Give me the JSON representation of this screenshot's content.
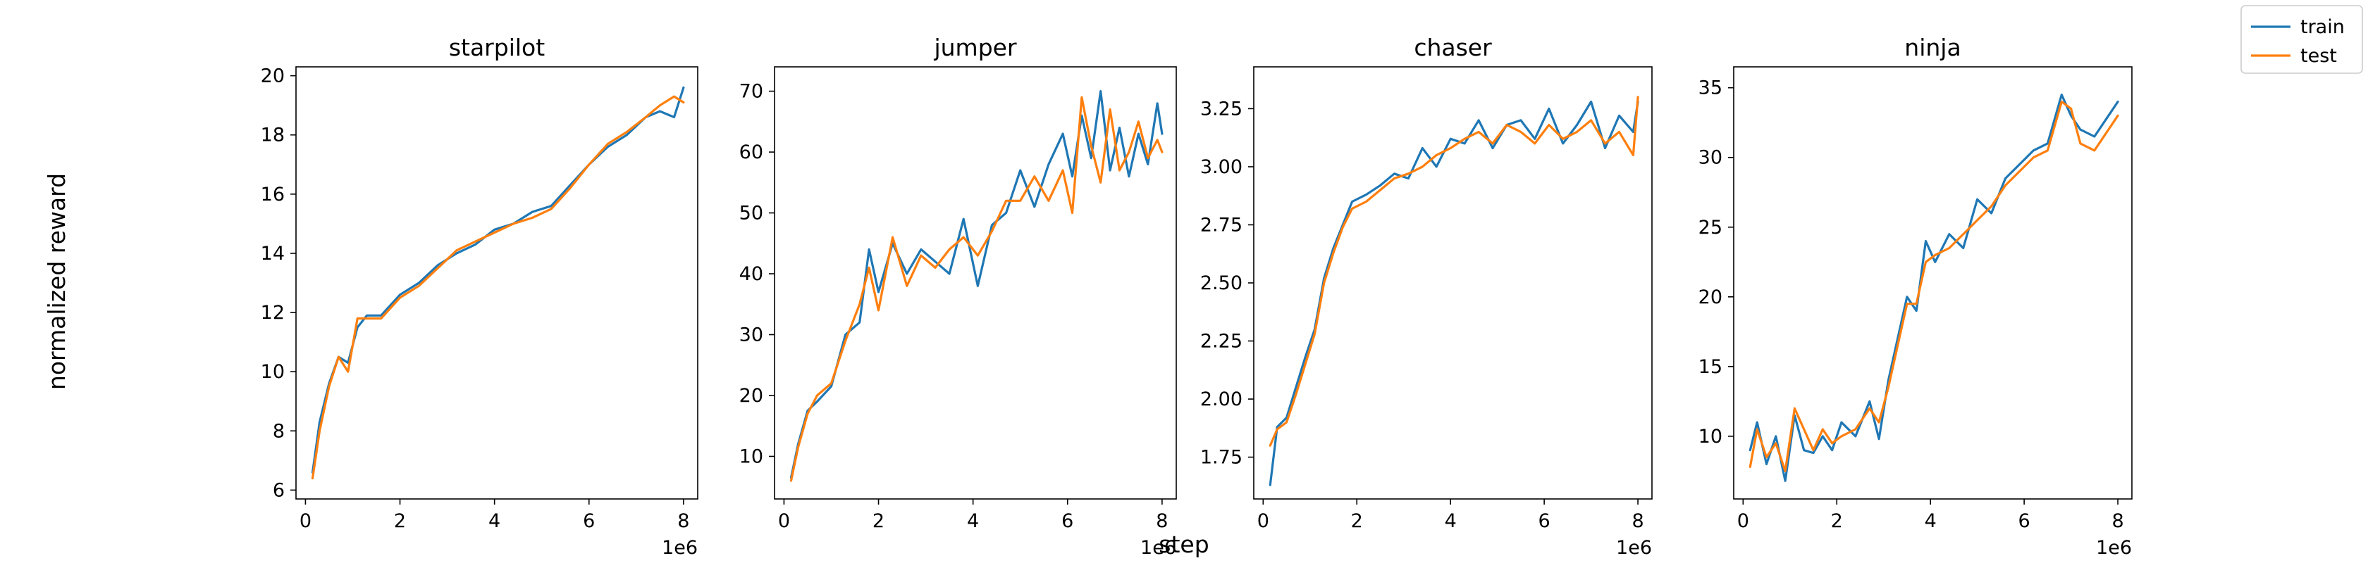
{
  "figure": {
    "ylabel": "normalized reward",
    "xlabel": "step",
    "x_offset_text": "1e6"
  },
  "legend": {
    "placement": "top-right",
    "entries": [
      {
        "name": "train",
        "color": "#1f77b4"
      },
      {
        "name": "test",
        "color": "#ff7f0e"
      }
    ]
  },
  "chart_data": [
    {
      "type": "line",
      "title": "starpilot",
      "xlim": [
        -0.2,
        8.3
      ],
      "ylim": [
        5.7,
        20.3
      ],
      "xticks": [
        0,
        2,
        4,
        6,
        8
      ],
      "yticks": [
        6,
        8,
        10,
        12,
        14,
        16,
        18,
        20
      ],
      "grid": false,
      "series": [
        {
          "name": "train",
          "color": "#1f77b4",
          "x": [
            0.15,
            0.3,
            0.5,
            0.7,
            0.9,
            1.1,
            1.3,
            1.6,
            2.0,
            2.4,
            2.8,
            3.2,
            3.6,
            4.0,
            4.4,
            4.8,
            5.2,
            5.6,
            6.0,
            6.4,
            6.8,
            7.2,
            7.5,
            7.8,
            8.0
          ],
          "y": [
            6.6,
            8.3,
            9.6,
            10.5,
            10.3,
            11.5,
            11.9,
            11.9,
            12.6,
            13.0,
            13.6,
            14.0,
            14.3,
            14.8,
            15.0,
            15.4,
            15.6,
            16.3,
            17.0,
            17.6,
            18.0,
            18.6,
            18.8,
            18.6,
            19.6
          ]
        },
        {
          "name": "test",
          "color": "#ff7f0e",
          "x": [
            0.15,
            0.3,
            0.5,
            0.7,
            0.9,
            1.1,
            1.3,
            1.6,
            2.0,
            2.4,
            2.8,
            3.2,
            3.6,
            4.0,
            4.4,
            4.8,
            5.2,
            5.6,
            6.0,
            6.4,
            6.8,
            7.2,
            7.5,
            7.8,
            8.0
          ],
          "y": [
            6.4,
            8.0,
            9.5,
            10.5,
            10.0,
            11.8,
            11.8,
            11.8,
            12.5,
            12.9,
            13.5,
            14.1,
            14.4,
            14.7,
            15.0,
            15.2,
            15.5,
            16.2,
            17.0,
            17.7,
            18.1,
            18.6,
            19.0,
            19.3,
            19.1
          ]
        }
      ]
    },
    {
      "type": "line",
      "title": "jumper",
      "xlim": [
        -0.2,
        8.3
      ],
      "ylim": [
        3.0,
        74.0
      ],
      "xticks": [
        0,
        2,
        4,
        6,
        8
      ],
      "yticks": [
        10,
        20,
        30,
        40,
        50,
        60,
        70
      ],
      "grid": false,
      "series": [
        {
          "name": "train",
          "color": "#1f77b4",
          "x": [
            0.15,
            0.3,
            0.5,
            0.7,
            1.0,
            1.3,
            1.6,
            1.8,
            2.0,
            2.3,
            2.6,
            2.9,
            3.2,
            3.5,
            3.8,
            4.1,
            4.4,
            4.7,
            5.0,
            5.3,
            5.6,
            5.9,
            6.1,
            6.3,
            6.5,
            6.7,
            6.9,
            7.1,
            7.3,
            7.5,
            7.7,
            7.9,
            8.0
          ],
          "y": [
            6.5,
            12.0,
            17.5,
            19.0,
            21.5,
            30.0,
            32.0,
            44.0,
            37.0,
            45.0,
            40.0,
            44.0,
            42.0,
            40.0,
            49.0,
            38.0,
            48.0,
            50.0,
            57.0,
            51.0,
            58.0,
            63.0,
            56.0,
            66.0,
            59.0,
            70.0,
            57.0,
            64.0,
            56.0,
            63.0,
            58.0,
            68.0,
            63.0
          ]
        },
        {
          "name": "test",
          "color": "#ff7f0e",
          "x": [
            0.15,
            0.3,
            0.5,
            0.7,
            1.0,
            1.3,
            1.6,
            1.8,
            2.0,
            2.3,
            2.6,
            2.9,
            3.2,
            3.5,
            3.8,
            4.1,
            4.4,
            4.7,
            5.0,
            5.3,
            5.6,
            5.9,
            6.1,
            6.3,
            6.5,
            6.7,
            6.9,
            7.1,
            7.3,
            7.5,
            7.7,
            7.9,
            8.0
          ],
          "y": [
            6.0,
            11.5,
            17.0,
            20.0,
            22.0,
            29.0,
            35.0,
            41.0,
            34.0,
            46.0,
            38.0,
            43.0,
            41.0,
            44.0,
            46.0,
            43.0,
            47.0,
            52.0,
            52.0,
            56.0,
            52.0,
            57.0,
            50.0,
            69.0,
            61.0,
            55.0,
            67.0,
            57.0,
            60.0,
            65.0,
            59.0,
            62.0,
            60.0
          ]
        }
      ]
    },
    {
      "type": "line",
      "title": "chaser",
      "xlim": [
        -0.2,
        8.3
      ],
      "ylim": [
        1.57,
        3.43
      ],
      "xticks": [
        0,
        2,
        4,
        6,
        8
      ],
      "yticks": [
        1.75,
        2.0,
        2.25,
        2.5,
        2.75,
        3.0,
        3.25
      ],
      "grid": false,
      "series": [
        {
          "name": "train",
          "color": "#1f77b4",
          "x": [
            0.15,
            0.3,
            0.5,
            0.7,
            0.9,
            1.1,
            1.3,
            1.5,
            1.7,
            1.9,
            2.2,
            2.5,
            2.8,
            3.1,
            3.4,
            3.7,
            4.0,
            4.3,
            4.6,
            4.9,
            5.2,
            5.5,
            5.8,
            6.1,
            6.4,
            6.7,
            7.0,
            7.3,
            7.6,
            7.9,
            8.0
          ],
          "y": [
            1.63,
            1.88,
            1.92,
            2.05,
            2.18,
            2.3,
            2.52,
            2.65,
            2.75,
            2.85,
            2.88,
            2.92,
            2.97,
            2.95,
            3.08,
            3.0,
            3.12,
            3.1,
            3.2,
            3.08,
            3.18,
            3.2,
            3.12,
            3.25,
            3.1,
            3.18,
            3.28,
            3.08,
            3.22,
            3.15,
            3.28
          ]
        },
        {
          "name": "test",
          "color": "#ff7f0e",
          "x": [
            0.15,
            0.3,
            0.5,
            0.7,
            0.9,
            1.1,
            1.3,
            1.5,
            1.7,
            1.9,
            2.2,
            2.5,
            2.8,
            3.1,
            3.4,
            3.7,
            4.0,
            4.3,
            4.6,
            4.9,
            5.2,
            5.5,
            5.8,
            6.1,
            6.4,
            6.7,
            7.0,
            7.3,
            7.6,
            7.9,
            8.0
          ],
          "y": [
            1.8,
            1.87,
            1.9,
            2.02,
            2.15,
            2.28,
            2.5,
            2.63,
            2.74,
            2.82,
            2.85,
            2.9,
            2.95,
            2.97,
            3.0,
            3.05,
            3.08,
            3.12,
            3.15,
            3.1,
            3.18,
            3.15,
            3.1,
            3.18,
            3.12,
            3.15,
            3.2,
            3.1,
            3.15,
            3.05,
            3.3
          ]
        }
      ]
    },
    {
      "type": "line",
      "title": "ninja",
      "xlim": [
        -0.2,
        8.3
      ],
      "ylim": [
        5.5,
        36.5
      ],
      "xticks": [
        0,
        2,
        4,
        6,
        8
      ],
      "yticks": [
        10,
        15,
        20,
        25,
        30,
        35
      ],
      "grid": false,
      "series": [
        {
          "name": "train",
          "color": "#1f77b4",
          "x": [
            0.15,
            0.3,
            0.5,
            0.7,
            0.9,
            1.1,
            1.3,
            1.5,
            1.7,
            1.9,
            2.1,
            2.4,
            2.7,
            2.9,
            3.1,
            3.3,
            3.5,
            3.7,
            3.9,
            4.1,
            4.4,
            4.7,
            5.0,
            5.3,
            5.6,
            5.9,
            6.2,
            6.5,
            6.8,
            7.0,
            7.2,
            7.5,
            7.8,
            8.0
          ],
          "y": [
            9.0,
            11.0,
            8.0,
            10.0,
            6.8,
            11.5,
            9.0,
            8.8,
            10.0,
            9.0,
            11.0,
            10.0,
            12.5,
            9.8,
            14.0,
            17.0,
            20.0,
            19.0,
            24.0,
            22.5,
            24.5,
            23.5,
            27.0,
            26.0,
            28.5,
            29.5,
            30.5,
            31.0,
            34.5,
            33.0,
            32.0,
            31.5,
            33.0,
            34.0
          ]
        },
        {
          "name": "test",
          "color": "#ff7f0e",
          "x": [
            0.15,
            0.3,
            0.5,
            0.7,
            0.9,
            1.1,
            1.3,
            1.5,
            1.7,
            1.9,
            2.1,
            2.4,
            2.7,
            2.9,
            3.1,
            3.3,
            3.5,
            3.7,
            3.9,
            4.1,
            4.4,
            4.7,
            5.0,
            5.3,
            5.6,
            5.9,
            6.2,
            6.5,
            6.8,
            7.0,
            7.2,
            7.5,
            7.8,
            8.0
          ],
          "y": [
            7.8,
            10.5,
            8.5,
            9.5,
            7.5,
            12.0,
            10.5,
            9.0,
            10.5,
            9.5,
            10.0,
            10.5,
            12.0,
            11.0,
            13.5,
            16.5,
            19.5,
            19.5,
            22.5,
            23.0,
            23.5,
            24.5,
            25.5,
            26.5,
            28.0,
            29.0,
            30.0,
            30.5,
            34.0,
            33.5,
            31.0,
            30.5,
            32.0,
            33.0
          ]
        }
      ]
    }
  ]
}
